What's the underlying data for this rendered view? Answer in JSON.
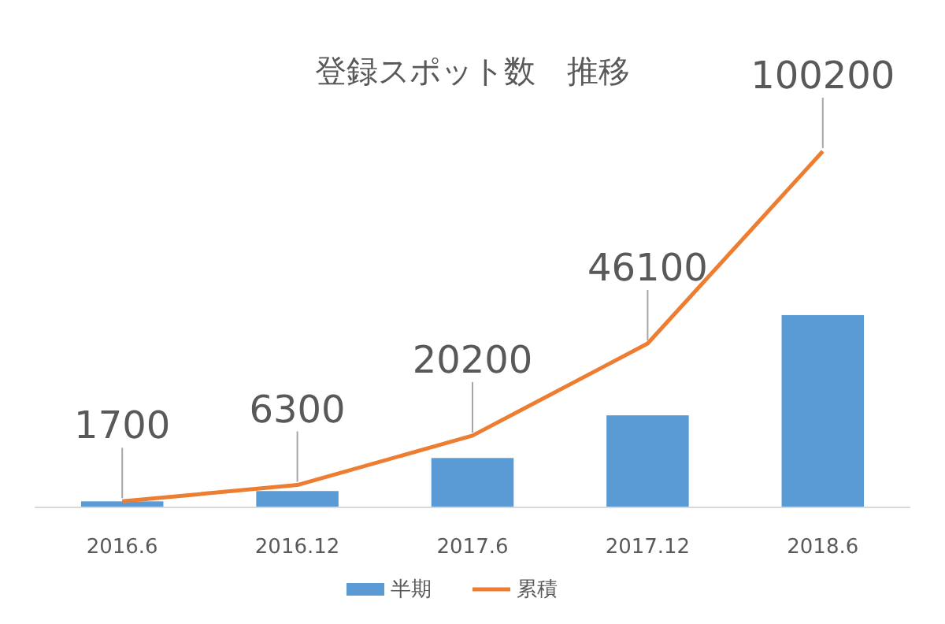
{
  "chart_data": {
    "type": "bar",
    "title": "登録スポット数　推移",
    "categories": [
      "2016.6",
      "2016.12",
      "2017.6",
      "2017.12",
      "2018.6"
    ],
    "series": [
      {
        "name": "半期",
        "color": "#5b9bd5",
        "values": [
          1700,
          4600,
          13900,
          25900,
          54100
        ]
      },
      {
        "name": "累積",
        "type": "line",
        "color": "#ed7d31",
        "values": [
          1700,
          6300,
          20200,
          46100,
          100200
        ],
        "value_labels": [
          "1700",
          "6300",
          "20200",
          "46100",
          "100200"
        ]
      }
    ],
    "legend": "bottom",
    "marker": "none"
  }
}
